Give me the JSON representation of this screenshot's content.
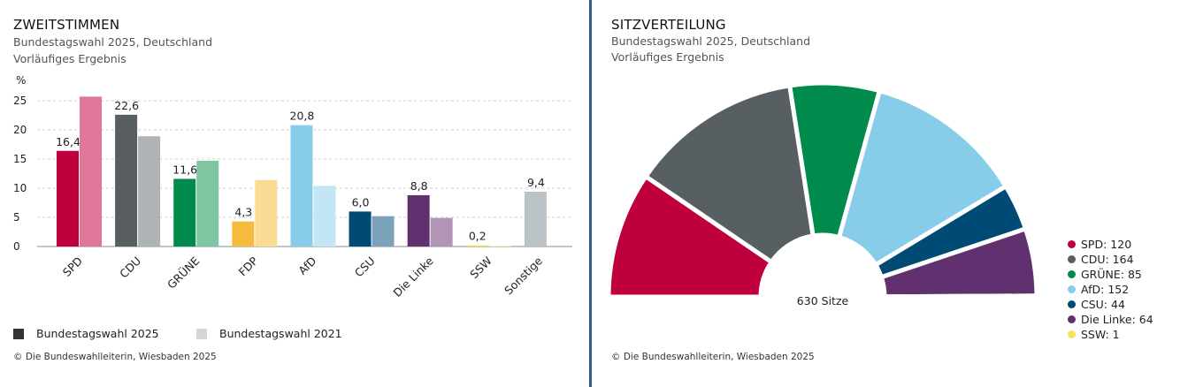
{
  "votes": {
    "title": "ZWEITSTIMMEN",
    "subtitle_1": "Bundestagswahl 2025, Deutschland",
    "subtitle_2": "Vorläufiges Ergebnis",
    "legend": [
      {
        "label": "Bundestagswahl 2025",
        "color": "#333333"
      },
      {
        "label": "Bundestagswahl 2021",
        "color": "#d6d6d6"
      }
    ],
    "footnote": "© Die Bundeswahlleiterin, Wiesbaden 2025"
  },
  "seats": {
    "title": "SITZVERTEILUNG",
    "subtitle_1": "Bundestagswahl 2025, Deutschland",
    "subtitle_2": "Vorläufiges Ergebnis",
    "center_label": "630 Sitze",
    "footnote": "© Die Bundeswahlleiterin, Wiesbaden 2025"
  },
  "chart_data": [
    {
      "type": "bar",
      "title": "ZWEITSTIMMEN",
      "ylabel": "%",
      "ylim": [
        0,
        25
      ],
      "yticks": [
        0,
        5,
        10,
        15,
        20,
        25
      ],
      "grid": true,
      "categories": [
        "SPD",
        "CDU",
        "GRÜNE",
        "FDP",
        "AfD",
        "CSU",
        "Die Linke",
        "SSW",
        "Sonstige"
      ],
      "series": [
        {
          "name": "Bundestagswahl 2025",
          "values": [
            16.4,
            22.6,
            11.6,
            4.3,
            20.8,
            6.0,
            8.8,
            0.2,
            9.4
          ],
          "labels": [
            "16,4",
            "22,6",
            "11,6",
            "4,3",
            "20,8",
            "6,0",
            "8,8",
            "0,2",
            "9,4"
          ],
          "colors": [
            "#c0003c",
            "#575f63",
            "#008a4b",
            "#f6bb3c",
            "#87cdea",
            "#004b76",
            "#61306e",
            "#f5e35a",
            "#bcc3c6"
          ]
        },
        {
          "name": "Bundestagswahl 2021",
          "values": [
            25.7,
            18.9,
            14.7,
            11.4,
            10.4,
            5.2,
            4.9,
            0.1,
            null
          ],
          "colors": [
            "#e07799",
            "#aeb3b5",
            "#7fc5a1",
            "#fbdb92",
            "#c3e6f5",
            "#7aa3b9",
            "#b095b7",
            "#f9ef9f",
            "#dde1e2"
          ]
        }
      ]
    },
    {
      "type": "pie",
      "title": "SITZVERTEILUNG",
      "total": 630,
      "slices": [
        {
          "name": "SPD",
          "value": 120,
          "label": "SPD: 120",
          "color": "#c0003c"
        },
        {
          "name": "CDU",
          "value": 164,
          "label": "CDU: 164",
          "color": "#575f63"
        },
        {
          "name": "GRÜNE",
          "value": 85,
          "label": "GRÜNE: 85",
          "color": "#008a4b"
        },
        {
          "name": "AfD",
          "value": 152,
          "label": "AfD: 152",
          "color": "#87cdea"
        },
        {
          "name": "CSU",
          "value": 44,
          "label": "CSU: 44",
          "color": "#004b76"
        },
        {
          "name": "Die Linke",
          "value": 64,
          "label": "Die Linke: 64",
          "color": "#61306e"
        },
        {
          "name": "SSW",
          "value": 1,
          "label": "SSW: 1",
          "color": "#f5e35a"
        }
      ]
    }
  ]
}
